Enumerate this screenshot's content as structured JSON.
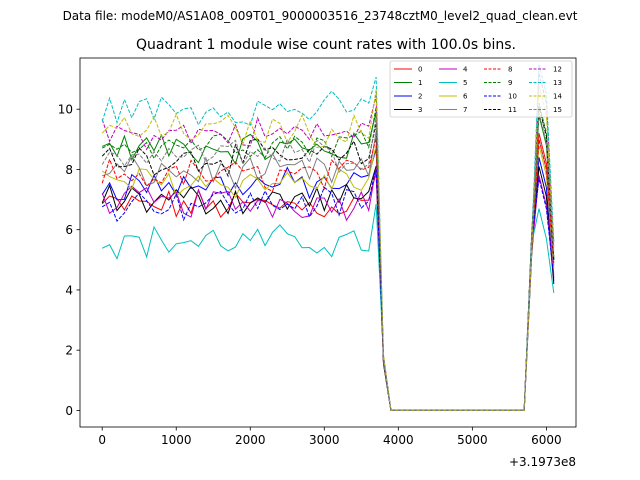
{
  "chart_data": {
    "type": "line",
    "suptitle": "Data file: modeM0/AS1A08_009T01_9000003516_23748cztM0_level2_quad_clean.evt",
    "title": "Quadrant 1 module wise count rates with 100.0s bins.",
    "xlabel": "",
    "ylabel": "",
    "x_offset_label": "+3.1973e8",
    "xlim": [
      -300,
      6400
    ],
    "ylim": [
      -0.55,
      11.7
    ],
    "xticks": [
      0,
      1000,
      2000,
      3000,
      4000,
      5000,
      6000
    ],
    "xtick_labels": [
      "0",
      "1000",
      "2000",
      "3000",
      "4000",
      "5000",
      "6000"
    ],
    "yticks": [
      0,
      2,
      4,
      6,
      8,
      10
    ],
    "ytick_labels": [
      "0",
      "2",
      "4",
      "6",
      "8",
      "10"
    ],
    "grid": false,
    "legend_placement": "top-right",
    "legend_ncol": 4,
    "x": [
      0,
      100,
      200,
      300,
      400,
      500,
      600,
      700,
      800,
      900,
      1000,
      1100,
      1200,
      1300,
      1400,
      1500,
      1600,
      1700,
      1800,
      1900,
      2000,
      2100,
      2200,
      2300,
      2400,
      2500,
      2600,
      2700,
      2800,
      2900,
      3000,
      3100,
      3200,
      3300,
      3400,
      3500,
      3600,
      3700,
      3800,
      3900,
      4000,
      5700,
      5800,
      5900,
      6000,
      6100
    ],
    "series": [
      {
        "name": "0",
        "color": "#ff0000",
        "dash": "solid",
        "base": 6.8,
        "end": [
          8.8,
          5.6
        ]
      },
      {
        "name": "1",
        "color": "#008000",
        "dash": "solid",
        "base": 8.7,
        "end": [
          9.4,
          5.0
        ]
      },
      {
        "name": "2",
        "color": "#0000ff",
        "dash": "solid",
        "base": 7.5,
        "end": [
          8.0,
          4.3
        ]
      },
      {
        "name": "3",
        "color": "#000000",
        "dash": "solid",
        "base": 7.0,
        "end": [
          7.7,
          4.2
        ]
      },
      {
        "name": "4",
        "color": "#bf00bf",
        "dash": "solid",
        "base": 6.9,
        "end": [
          7.4,
          4.5
        ]
      },
      {
        "name": "5",
        "color": "#00bfbf",
        "dash": "solid",
        "base": 5.6,
        "end": [
          6.3,
          3.9
        ]
      },
      {
        "name": "6",
        "color": "#bfbf00",
        "dash": "solid",
        "base": 7.6,
        "end": [
          8.4,
          4.7
        ]
      },
      {
        "name": "7",
        "color": "#808080",
        "dash": "solid",
        "base": 7.9,
        "end": [
          8.6,
          4.8
        ]
      },
      {
        "name": "8",
        "color": "#ff0000",
        "dash": "dashed",
        "base": 7.8,
        "end": [
          8.6,
          4.9
        ]
      },
      {
        "name": "9",
        "color": "#008000",
        "dash": "dashed",
        "base": 8.9,
        "end": [
          9.8,
          5.1
        ]
      },
      {
        "name": "10",
        "color": "#0000ff",
        "dash": "dashed",
        "base": 6.9,
        "end": [
          7.3,
          4.4
        ]
      },
      {
        "name": "11",
        "color": "#000000",
        "dash": "dashed",
        "base": 8.4,
        "end": [
          9.7,
          5.0
        ]
      },
      {
        "name": "12",
        "color": "#bf00bf",
        "dash": "dashed",
        "base": 9.2,
        "end": [
          10.8,
          5.4
        ]
      },
      {
        "name": "13",
        "color": "#00bfbf",
        "dash": "dashed",
        "base": 10.0,
        "end": [
          11.1,
          5.6
        ]
      },
      {
        "name": "14",
        "color": "#bfbf00",
        "dash": "dashed",
        "base": 9.3,
        "end": [
          10.4,
          5.3
        ]
      },
      {
        "name": "15",
        "color": "#808080",
        "dash": "dashed",
        "base": 8.5,
        "end": [
          9.5,
          5.1
        ]
      }
    ]
  }
}
